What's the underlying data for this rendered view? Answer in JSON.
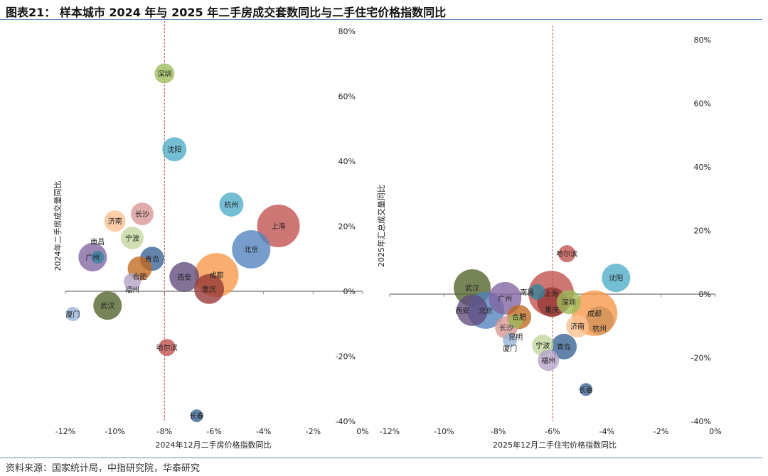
{
  "title": "图表21：  样本城市 2024 年与 2025 年二手房成交套数同比与二手住宅价格指数同比",
  "source": "资料来源：国家统计局，中指研究院，华泰研究",
  "chart_data": [
    {
      "type": "bubble",
      "xlabel": "2024年12月二手房价格指数同比",
      "ylabel": "2024年二手房成交量同比",
      "xlim": [
        -12,
        0
      ],
      "ylim": [
        -40,
        80
      ],
      "xticks": [
        "-12%",
        "-10%",
        "-8%",
        "-6%",
        "-4%",
        "-2%",
        "0%"
      ],
      "xtick_values": [
        -12,
        -10,
        -8,
        -6,
        -4,
        -2,
        0
      ],
      "yticks": [
        "80%",
        "60%",
        "40%",
        "20%",
        "0%",
        "-20%",
        "-40%"
      ],
      "ytick_values": [
        80,
        60,
        40,
        20,
        0,
        -20,
        -40
      ],
      "reference_x": -8,
      "points": [
        {
          "name": "深圳",
          "x": -8.0,
          "y": 67.0,
          "size": 14,
          "color": "#9bbb59"
        },
        {
          "name": "沈阳",
          "x": -7.6,
          "y": 43.7,
          "size": 17,
          "color": "#4bacc6"
        },
        {
          "name": "杭州",
          "x": -5.3,
          "y": 26.7,
          "size": 17,
          "color": "#4bacc6"
        },
        {
          "name": "上海",
          "x": -3.4,
          "y": 20.1,
          "size": 30,
          "color": "#c0504d"
        },
        {
          "name": "北京",
          "x": -4.5,
          "y": 12.9,
          "size": 27,
          "color": "#4f81bd"
        },
        {
          "name": "长沙",
          "x": -8.9,
          "y": 23.8,
          "size": 16,
          "color": "#d99694"
        },
        {
          "name": "济南",
          "x": -10.0,
          "y": 21.6,
          "size": 15,
          "color": "#fac090"
        },
        {
          "name": "宁波",
          "x": -9.3,
          "y": 16.4,
          "size": 16,
          "color": "#c3d69b"
        },
        {
          "name": "广州",
          "x": -10.9,
          "y": 10.5,
          "size": 20,
          "color": "#8064a2"
        },
        {
          "name": "南昌",
          "x": -10.7,
          "y": 10.5,
          "size": 9,
          "color": "#31859c"
        },
        {
          "name": "青岛",
          "x": -8.5,
          "y": 10.0,
          "size": 17,
          "color": "#366092"
        },
        {
          "name": "合肥",
          "x": -9.0,
          "y": 7.0,
          "size": 17,
          "color": "#c0681e"
        },
        {
          "name": "福州",
          "x": -9.3,
          "y": 3.0,
          "size": 12,
          "color": "#b3a2c7"
        },
        {
          "name": "西安",
          "x": -7.2,
          "y": 4.4,
          "size": 21,
          "color": "#604a7b"
        },
        {
          "name": "成都",
          "x": -5.9,
          "y": 5.0,
          "size": 31,
          "color": "#f79646"
        },
        {
          "name": "重庆",
          "x": -6.2,
          "y": 0.7,
          "size": 21,
          "color": "#953735"
        },
        {
          "name": "武汉",
          "x": -10.3,
          "y": -4.4,
          "size": 20,
          "color": "#4f6228"
        },
        {
          "name": "厦门",
          "x": -11.7,
          "y": -7.0,
          "size": 10,
          "color": "#95b3d7"
        },
        {
          "name": "哈尔滨",
          "x": -7.9,
          "y": -17.3,
          "size": 12,
          "color": "#c0504d"
        },
        {
          "name": "长春",
          "x": -6.7,
          "y": -38.3,
          "size": 9,
          "color": "#366092"
        }
      ]
    },
    {
      "type": "bubble",
      "xlabel": "2025年12月二手住宅价格指数同比",
      "ylabel": "2025年汇总成交量同比",
      "xlim": [
        -12,
        0
      ],
      "ylim": [
        -40,
        80
      ],
      "xticks": [
        "-12%",
        "-10%",
        "-8%",
        "-6%",
        "-4%",
        "-2%",
        "0%"
      ],
      "xtick_values": [
        -12,
        -10,
        -8,
        -6,
        -4,
        -2,
        0
      ],
      "yticks": [
        "80%",
        "60%",
        "40%",
        "20%",
        "0%",
        "-20%",
        "-40%"
      ],
      "ytick_values": [
        80,
        60,
        40,
        20,
        0,
        -20,
        -40
      ],
      "reference_x": -6,
      "points": [
        {
          "name": "哈尔滨",
          "x": -5.47,
          "y": 12.7,
          "size": 12,
          "color": "#c0504d"
        },
        {
          "name": "沈阳",
          "x": -3.66,
          "y": 5.1,
          "size": 20,
          "color": "#4bacc6"
        },
        {
          "name": "武汉",
          "x": -8.96,
          "y": 2.0,
          "size": 26,
          "color": "#4f6228"
        },
        {
          "name": "北京",
          "x": -8.46,
          "y": -5.1,
          "size": 26,
          "color": "#4f81bd"
        },
        {
          "name": "广州",
          "x": -7.75,
          "y": -1.3,
          "size": 23,
          "color": "#8064a2"
        },
        {
          "name": "西安",
          "x": -8.96,
          "y": -5.1,
          "size": 22,
          "color": "#604a7b"
        },
        {
          "name": "上海",
          "x": -6.05,
          "y": 0.2,
          "size": 32,
          "color": "#c0504d"
        },
        {
          "name": "南昌",
          "x": -6.57,
          "y": 0.7,
          "size": 11,
          "color": "#31859c"
        },
        {
          "name": "深圳",
          "x": -5.4,
          "y": -2.5,
          "size": 17,
          "color": "#9bbb59"
        },
        {
          "name": "重庆",
          "x": -6.02,
          "y": -2.5,
          "size": 21,
          "color": "#953735"
        },
        {
          "name": "成都",
          "x": -4.45,
          "y": -6.0,
          "size": 32,
          "color": "#f79646"
        },
        {
          "name": "杭州",
          "x": -4.27,
          "y": -8.3,
          "size": 20,
          "color": "#d0915a"
        },
        {
          "name": "济南",
          "x": -5.08,
          "y": -10.1,
          "size": 16,
          "color": "#fac090"
        },
        {
          "name": "长沙",
          "x": -7.7,
          "y": -10.5,
          "size": 16,
          "color": "#d99694"
        },
        {
          "name": "合肥",
          "x": -7.23,
          "y": -7.2,
          "size": 17,
          "color": "#c0681e"
        },
        {
          "name": "昆明",
          "x": -7.36,
          "y": -8.5,
          "size": 10,
          "color": "#9bbb59"
        },
        {
          "name": "厦门",
          "x": -7.57,
          "y": -14.5,
          "size": 10,
          "color": "#95b3d7"
        },
        {
          "name": "宁波",
          "x": -6.36,
          "y": -16.1,
          "size": 15,
          "color": "#c3d69b"
        },
        {
          "name": "青岛",
          "x": -5.58,
          "y": -16.5,
          "size": 18,
          "color": "#366092"
        },
        {
          "name": "福州",
          "x": -6.15,
          "y": -20.8,
          "size": 15,
          "color": "#b3a2c7"
        },
        {
          "name": "长春",
          "x": -4.77,
          "y": -30.0,
          "size": 9,
          "color": "#366092"
        }
      ]
    }
  ]
}
